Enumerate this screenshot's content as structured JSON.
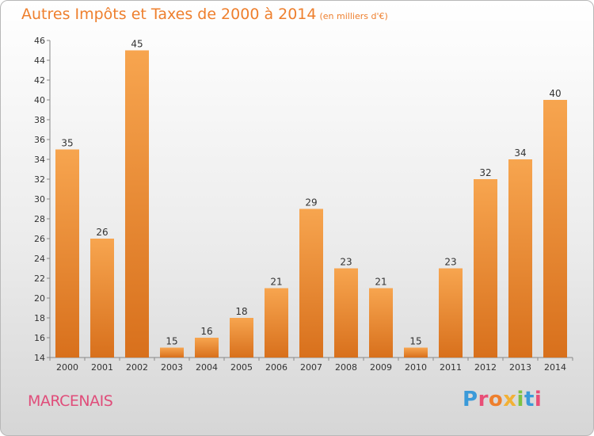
{
  "title": "Autres Impôts et Taxes de 2000 à 2014",
  "title_unit": "(en milliers d'€)",
  "commune": "MARCENAIS",
  "logo": {
    "text": "Proxiti",
    "letter_colors": [
      "#3a9ad9",
      "#e94e77",
      "#ee7f2d",
      "#f2b135",
      "#7dc243",
      "#3a9ad9",
      "#e94e77"
    ]
  },
  "colors": {
    "accent": "#ee7f2d",
    "bar_light": "#f7a54f",
    "bar_dark": "#d8701c",
    "commune": "#e04d7a"
  },
  "chart_data": {
    "type": "bar",
    "title": "Autres Impôts et Taxes de 2000 à 2014",
    "subtitle": "(en milliers d'€)",
    "categories": [
      "2000",
      "2001",
      "2002",
      "2003",
      "2004",
      "2005",
      "2006",
      "2007",
      "2008",
      "2009",
      "2010",
      "2011",
      "2012",
      "2013",
      "2014"
    ],
    "values": [
      35,
      26,
      45,
      15,
      16,
      18,
      21,
      29,
      23,
      21,
      15,
      23,
      32,
      34,
      40
    ],
    "ylim": [
      14,
      46
    ],
    "yticks": [
      14,
      16,
      18,
      20,
      22,
      24,
      26,
      28,
      30,
      32,
      34,
      36,
      38,
      40,
      42,
      44,
      46
    ],
    "grid": false,
    "legend": "none"
  }
}
